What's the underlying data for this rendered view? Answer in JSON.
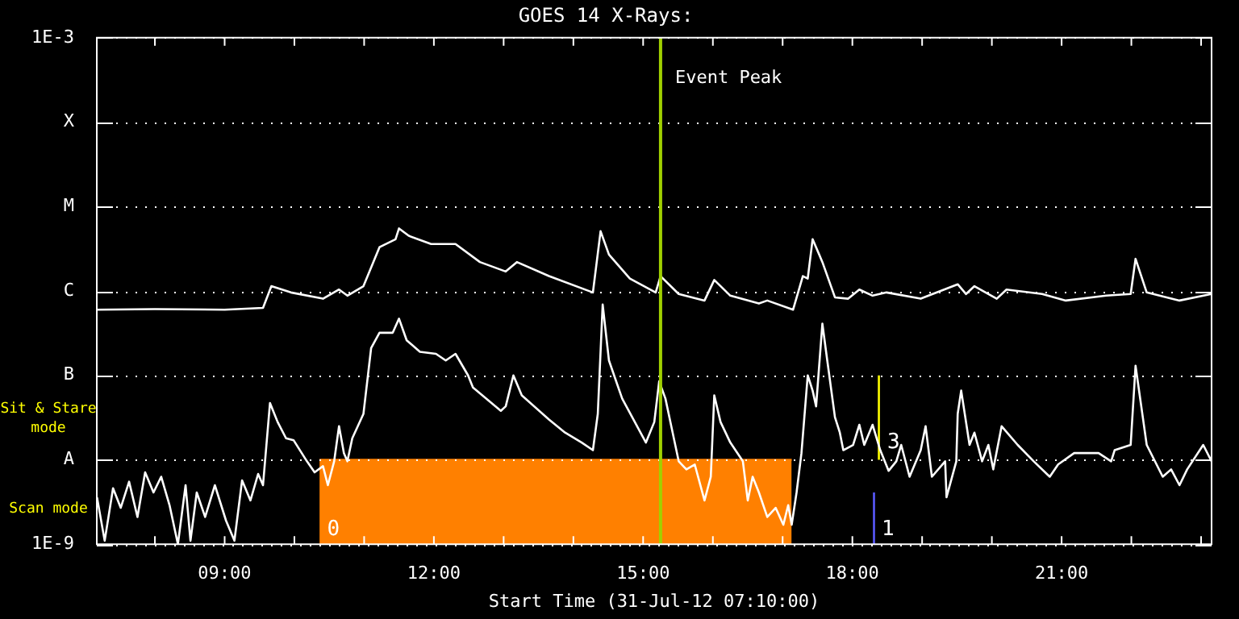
{
  "chart_data": {
    "type": "line",
    "title": "GOES 14 X-Rays:",
    "xlabel": "Start Time (31-Jul-12 07:10:00)",
    "log": true,
    "grid": "y",
    "legend": false,
    "marker": "none",
    "line_style": "solid",
    "xlim": [
      7.167,
      23.15
    ],
    "xticks": [
      {
        "value": 8,
        "label": null
      },
      {
        "value": 9,
        "label": "09:00"
      },
      {
        "value": 10,
        "label": null
      },
      {
        "value": 11,
        "label": null
      },
      {
        "value": 12,
        "label": "12:00"
      },
      {
        "value": 13,
        "label": null
      },
      {
        "value": 14,
        "label": null
      },
      {
        "value": 15,
        "label": "15:00"
      },
      {
        "value": 16,
        "label": null
      },
      {
        "value": 17,
        "label": null
      },
      {
        "value": 18,
        "label": "18:00"
      },
      {
        "value": 19,
        "label": null
      },
      {
        "value": 20,
        "label": null
      },
      {
        "value": 21,
        "label": "21:00"
      },
      {
        "value": 22,
        "label": null
      },
      {
        "value": 23,
        "label": null
      }
    ],
    "ylim": [
      1e-09,
      0.001
    ],
    "yticks": [
      {
        "value": 1e-09,
        "label": "1E-9"
      },
      {
        "value": 1e-08,
        "label": "A"
      },
      {
        "value": 1e-07,
        "label": "B"
      },
      {
        "value": 1e-06,
        "label": "C"
      },
      {
        "value": 1e-05,
        "label": "M"
      },
      {
        "value": 0.0001,
        "label": "X"
      },
      {
        "value": 0.001,
        "label": "1E-3"
      }
    ],
    "ref_lines": [
      {
        "axis": "x",
        "value": 15.25,
        "label": "Event Peak",
        "color": "#a0d000"
      }
    ],
    "annotations": [
      "Sit & Stare mode",
      "Scan mode",
      {
        "text": "0",
        "x": 10.47,
        "y": 1.5e-09
      },
      {
        "text": "1",
        "x": 18.42,
        "y": 1.5e-09
      },
      {
        "text": "3",
        "x": 18.5,
        "y": 1.6e-08
      }
    ],
    "series": [
      {
        "type": "area",
        "color": "#ff8000",
        "x": [
          10.36,
          17.13
        ],
        "values": [
          1e-08,
          1e-08
        ]
      },
      {
        "type": "line",
        "color": "#ffffff",
        "x": [
          7.17,
          8.0,
          9.0,
          9.55,
          9.67,
          9.95,
          10.41,
          10.64,
          10.76,
          10.99,
          11.22,
          11.45,
          11.5,
          11.64,
          11.96,
          12.31,
          12.66,
          13.03,
          13.19,
          13.65,
          14.28,
          14.39,
          14.51,
          14.81,
          15.18,
          15.25,
          15.51,
          15.88,
          16.02,
          16.25,
          16.66,
          16.78,
          17.15,
          17.29,
          17.36,
          17.43,
          17.57,
          17.75,
          17.94,
          18.1,
          18.29,
          18.49,
          18.98,
          19.51,
          19.63,
          19.75,
          20.07,
          20.21,
          20.72,
          21.06,
          21.64,
          21.99,
          22.06,
          22.22,
          22.69,
          23.15
        ],
        "values": [
          6e-07,
          6.1e-07,
          6e-07,
          6.3e-07,
          1.14e-06,
          9.6e-07,
          8.1e-07,
          1.04e-06,
          8.8e-07,
          1.14e-06,
          3.3e-06,
          4.1e-06,
          5.5e-06,
          4.5e-06,
          3.6e-06,
          3.6e-06,
          2.2e-06,
          1.7e-06,
          2.2e-06,
          1.5e-06,
          9.6e-07,
          5.1e-06,
          2.7e-06,
          1.4e-06,
          9.6e-07,
          1.5e-06,
          9.2e-07,
          7.7e-07,
          1.35e-06,
          8.8e-07,
          7.1e-07,
          7.7e-07,
          6e-07,
          1.5e-06,
          1.4e-06,
          4.1e-06,
          2.2e-06,
          8.4e-07,
          8.1e-07,
          1.04e-06,
          8.8e-07,
          9.6e-07,
          8.1e-07,
          1.2e-06,
          9.2e-07,
          1.14e-06,
          8.1e-07,
          1.04e-06,
          9.2e-07,
          7.7e-07,
          8.8e-07,
          9.2e-07,
          2.4e-06,
          9.6e-07,
          7.7e-07,
          9.2e-07
        ]
      },
      {
        "type": "line",
        "color": "#ffffff",
        "x": [
          7.17,
          7.28,
          7.4,
          7.51,
          7.63,
          7.75,
          7.86,
          7.98,
          8.09,
          8.21,
          8.33,
          8.44,
          8.51,
          8.6,
          8.72,
          8.86,
          9.02,
          9.14,
          9.25,
          9.37,
          9.48,
          9.55,
          9.65,
          9.76,
          9.88,
          9.99,
          10.18,
          10.29,
          10.41,
          10.48,
          10.57,
          10.64,
          10.71,
          10.76,
          10.83,
          10.99,
          11.1,
          11.22,
          11.41,
          11.5,
          11.61,
          11.8,
          12.03,
          12.17,
          12.31,
          12.49,
          12.56,
          12.96,
          13.03,
          13.14,
          13.26,
          13.65,
          13.88,
          14.12,
          14.28,
          14.35,
          14.42,
          14.51,
          14.7,
          15.04,
          15.16,
          15.23,
          15.32,
          15.51,
          15.62,
          15.74,
          15.88,
          15.97,
          16.02,
          16.11,
          16.25,
          16.43,
          16.5,
          16.57,
          16.66,
          16.78,
          16.9,
          17.01,
          17.08,
          17.13,
          17.2,
          17.27,
          17.36,
          17.43,
          17.48,
          17.57,
          17.64,
          17.75,
          17.82,
          17.87,
          18.01,
          18.1,
          18.17,
          18.29,
          18.4,
          18.52,
          18.63,
          18.7,
          18.82,
          18.98,
          19.05,
          19.14,
          19.33,
          19.35,
          19.49,
          19.51,
          19.56,
          19.68,
          19.75,
          19.86,
          19.95,
          20.02,
          20.14,
          20.37,
          20.6,
          20.83,
          20.95,
          21.18,
          21.53,
          21.71,
          21.76,
          21.99,
          22.06,
          22.22,
          22.45,
          22.57,
          22.69,
          22.8,
          23.03,
          23.15
        ],
        "values": [
          3.6e-09,
          1.1e-09,
          4.6e-09,
          2.7e-09,
          5.5e-09,
          2.1e-09,
          7.1e-09,
          4.1e-09,
          6.3e-09,
          2.9e-09,
          1e-09,
          5e-09,
          1.1e-09,
          4.1e-09,
          2.1e-09,
          5e-09,
          1.9e-09,
          1.1e-09,
          5.7e-09,
          3.3e-09,
          6.8e-09,
          5e-09,
          4.7e-08,
          2.8e-08,
          1.8e-08,
          1.7e-08,
          9.6e-09,
          7.1e-09,
          8.4e-09,
          5e-09,
          9.6e-09,
          2.5e-08,
          1.2e-08,
          9.6e-09,
          1.8e-08,
          3.5e-08,
          2.1e-07,
          3.2e-07,
          3.2e-07,
          4.7e-07,
          2.6e-07,
          1.9e-07,
          1.8e-07,
          1.5e-07,
          1.8e-07,
          1e-07,
          7.2e-08,
          3.8e-08,
          4.3e-08,
          1e-07,
          5.8e-08,
          3e-08,
          2.1e-08,
          1.6e-08,
          1.3e-08,
          3.5e-08,
          6.9e-07,
          1.5e-07,
          5.3e-08,
          1.6e-08,
          2.8e-08,
          8.5e-08,
          5.3e-08,
          9.6e-09,
          7.7e-09,
          8.8e-09,
          3.3e-09,
          6.3e-09,
          5.8e-08,
          2.8e-08,
          1.6e-08,
          9.6e-09,
          3.3e-09,
          6.3e-09,
          4.1e-09,
          2.1e-09,
          2.7e-09,
          1.7e-09,
          2.9e-09,
          1.7e-09,
          4.1e-09,
          1.2e-08,
          1e-07,
          6.6e-08,
          4.3e-08,
          4.1e-07,
          1.5e-07,
          3.2e-08,
          2.1e-08,
          1.3e-08,
          1.5e-08,
          2.6e-08,
          1.5e-08,
          2.6e-08,
          1.3e-08,
          7.4e-09,
          9.6e-09,
          1.5e-08,
          6.3e-09,
          1.3e-08,
          2.5e-08,
          6.3e-09,
          9.6e-09,
          3.6e-09,
          9.6e-09,
          3.5e-08,
          6.6e-08,
          1.5e-08,
          2.1e-08,
          9.6e-09,
          1.5e-08,
          7.7e-09,
          2.5e-08,
          1.5e-08,
          9.6e-09,
          6.3e-09,
          8.8e-09,
          1.2e-08,
          1.2e-08,
          9.6e-09,
          1.3e-08,
          1.5e-08,
          1.3e-07,
          1.5e-08,
          6.3e-09,
          7.7e-09,
          5e-09,
          7.7e-09,
          1.5e-08,
          9.6e-09
        ]
      },
      {
        "type": "line",
        "color": "#ffff00",
        "x": [
          18.38,
          18.38
        ],
        "values": [
          1e-08,
          1e-07
        ]
      },
      {
        "type": "line",
        "color": "#5a5aff",
        "x": [
          18.31,
          18.31
        ],
        "values": [
          1e-09,
          4.1e-09
        ]
      }
    ]
  }
}
